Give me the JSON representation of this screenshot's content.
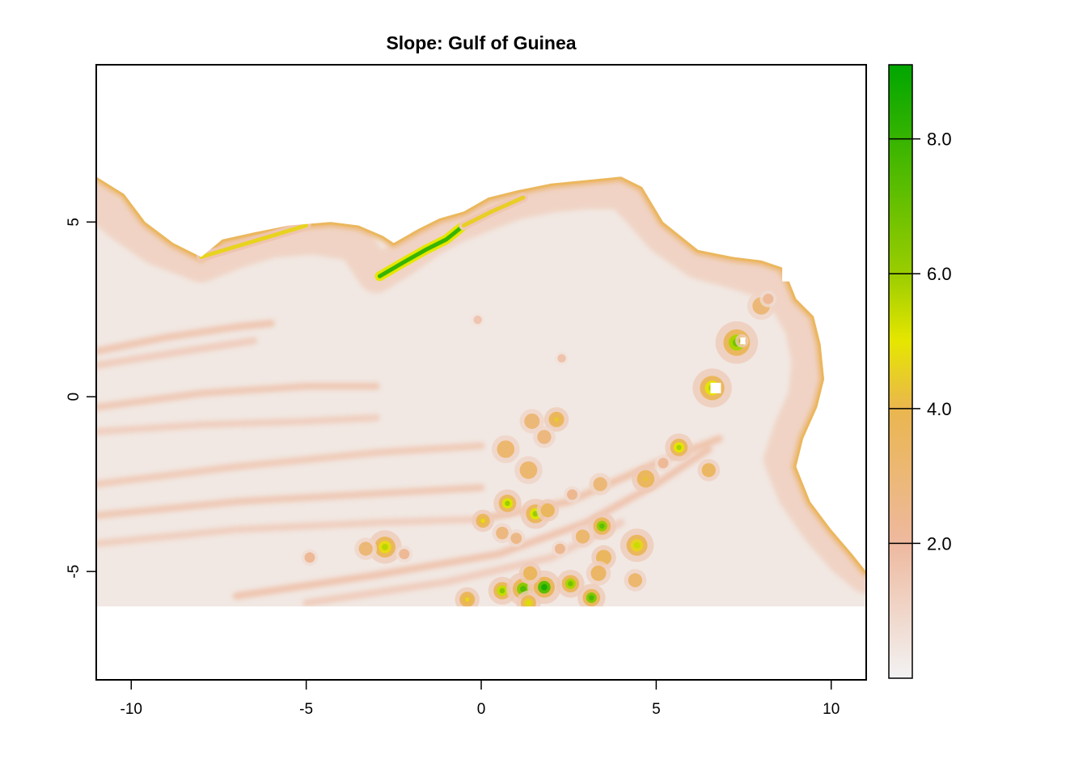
{
  "chart_data": {
    "type": "heatmap",
    "title": "Slope: Gulf of Guinea",
    "xlabel": "",
    "ylabel": "",
    "xlim": [
      -11,
      11
    ],
    "ylim": [
      -8.1,
      9.5
    ],
    "data_extent_ymin": -6,
    "x_ticks": [
      -10,
      -5,
      0,
      5,
      10
    ],
    "x_tick_labels": [
      "-10",
      "-5",
      "0",
      "5",
      "10"
    ],
    "y_ticks": [
      -5,
      0,
      5
    ],
    "y_tick_labels": [
      "-5",
      "0",
      "5"
    ],
    "legend": {
      "placement": "right",
      "range": [
        0,
        9.1
      ],
      "ticks": [
        2,
        4,
        6,
        8
      ],
      "tick_labels": [
        "2.0",
        "4.0",
        "6.0",
        "8.0"
      ],
      "color_stops": [
        {
          "value": 0,
          "color": "#F2F2F2"
        },
        {
          "value": 2,
          "color": "#EEB99F"
        },
        {
          "value": 4,
          "color": "#EAB64E"
        },
        {
          "value": 5,
          "color": "#E6E600"
        },
        {
          "value": 6,
          "color": "#9ACD00"
        },
        {
          "value": 9.1,
          "color": "#00A600"
        }
      ]
    },
    "land_color": "#FFFFFF",
    "coastline": [
      [
        -11,
        6.3
      ],
      [
        -10.2,
        5.8
      ],
      [
        -9.6,
        5.0
      ],
      [
        -8.8,
        4.4
      ],
      [
        -8.0,
        4.0
      ],
      [
        -7.4,
        4.5
      ],
      [
        -6.5,
        4.7
      ],
      [
        -5.5,
        4.9
      ],
      [
        -4.3,
        5.0
      ],
      [
        -3.5,
        4.9
      ],
      [
        -2.8,
        4.6
      ],
      [
        -2.5,
        4.4
      ],
      [
        -1.8,
        4.8
      ],
      [
        -1.2,
        5.1
      ],
      [
        -0.5,
        5.3
      ],
      [
        0.2,
        5.7
      ],
      [
        1.0,
        5.9
      ],
      [
        2.0,
        6.1
      ],
      [
        3.0,
        6.2
      ],
      [
        4.0,
        6.3
      ],
      [
        4.6,
        6.0
      ],
      [
        5.2,
        5.0
      ],
      [
        6.2,
        4.2
      ],
      [
        7.2,
        4.0
      ],
      [
        8.0,
        3.9
      ],
      [
        8.6,
        3.7
      ],
      [
        8.8,
        3.3
      ],
      [
        9.0,
        2.8
      ],
      [
        9.5,
        2.3
      ],
      [
        9.7,
        1.5
      ],
      [
        9.8,
        0.5
      ],
      [
        9.6,
        -0.3
      ],
      [
        9.2,
        -1.2
      ],
      [
        9.0,
        -2.0
      ],
      [
        9.4,
        -3.0
      ],
      [
        10.0,
        -3.8
      ],
      [
        10.6,
        -4.5
      ],
      [
        11,
        -5.0
      ]
    ],
    "shelf_break": [
      [
        -11,
        5.6
      ],
      [
        -10.3,
        5.0
      ],
      [
        -9.3,
        4.3
      ],
      [
        -8.0,
        3.8
      ],
      [
        -7.0,
        4.2
      ],
      [
        -6.0,
        4.5
      ],
      [
        -4.8,
        4.6
      ],
      [
        -3.6,
        4.4
      ],
      [
        -3.0,
        3.5
      ],
      [
        -2.2,
        4.0
      ],
      [
        -1.5,
        4.5
      ],
      [
        -0.8,
        4.9
      ],
      [
        0.2,
        5.3
      ],
      [
        1.0,
        5.6
      ],
      [
        2.0,
        5.8
      ],
      [
        3.0,
        5.9
      ],
      [
        4.0,
        5.9
      ],
      [
        4.5,
        5.4
      ],
      [
        5.2,
        4.6
      ],
      [
        6.2,
        3.9
      ],
      [
        7.3,
        3.6
      ],
      [
        8.2,
        3.3
      ],
      [
        8.8,
        2.7
      ],
      [
        9.2,
        2.0
      ],
      [
        9.4,
        1.0
      ],
      [
        9.3,
        0.0
      ],
      [
        8.9,
        -0.9
      ],
      [
        8.6,
        -1.8
      ],
      [
        9.0,
        -2.8
      ],
      [
        9.7,
        -3.8
      ],
      [
        10.4,
        -4.6
      ],
      [
        11,
        -5.1
      ]
    ],
    "steep_segments": [
      {
        "points": [
          [
            -2.9,
            3.45
          ],
          [
            -2.3,
            3.8
          ],
          [
            -1.6,
            4.2
          ],
          [
            -1.0,
            4.5
          ],
          [
            -0.5,
            4.9
          ]
        ],
        "value": 8.0
      },
      {
        "points": [
          [
            -8.0,
            4.0
          ],
          [
            -7.0,
            4.3
          ],
          [
            -6.0,
            4.6
          ],
          [
            -5.0,
            4.9
          ]
        ],
        "value": 4.6
      },
      {
        "points": [
          [
            -0.5,
            4.9
          ],
          [
            0.3,
            5.3
          ],
          [
            1.2,
            5.7
          ]
        ],
        "value": 4.5
      }
    ],
    "ridges": [
      {
        "points": [
          [
            -11,
            1.3
          ],
          [
            -9.0,
            1.7
          ],
          [
            -7.0,
            2.0
          ],
          [
            -6.0,
            2.1
          ]
        ],
        "value": 1.9
      },
      {
        "points": [
          [
            -11,
            0.9
          ],
          [
            -8.5,
            1.3
          ],
          [
            -6.5,
            1.6
          ]
        ],
        "value": 1.6
      },
      {
        "points": [
          [
            -11,
            -0.3
          ],
          [
            -8.0,
            0.1
          ],
          [
            -5.0,
            0.3
          ],
          [
            -3.0,
            0.3
          ]
        ],
        "value": 1.8
      },
      {
        "points": [
          [
            -11,
            -1.0
          ],
          [
            -8.0,
            -0.8
          ],
          [
            -5.0,
            -0.7
          ],
          [
            -3.0,
            -0.6
          ]
        ],
        "value": 1.5
      },
      {
        "points": [
          [
            -11,
            -2.5
          ],
          [
            -7.0,
            -2.0
          ],
          [
            -3.0,
            -1.6
          ],
          [
            0.0,
            -1.4
          ]
        ],
        "value": 1.7
      },
      {
        "points": [
          [
            -11,
            -3.4
          ],
          [
            -7.0,
            -3.0
          ],
          [
            -3.5,
            -2.8
          ],
          [
            0.0,
            -2.6
          ]
        ],
        "value": 1.8
      },
      {
        "points": [
          [
            -11,
            -4.2
          ],
          [
            -7.0,
            -3.8
          ],
          [
            -3.0,
            -3.6
          ],
          [
            0.0,
            -3.5
          ]
        ],
        "value": 1.5
      },
      {
        "points": [
          [
            -7.0,
            -5.7
          ],
          [
            -3.0,
            -5.1
          ],
          [
            0.5,
            -4.5
          ],
          [
            3.0,
            -3.6
          ],
          [
            5.0,
            -2.5
          ],
          [
            6.5,
            -1.5
          ]
        ],
        "value": 2.0
      },
      {
        "points": [
          [
            -5.0,
            -5.9
          ],
          [
            -1.0,
            -5.3
          ],
          [
            2.0,
            -4.6
          ],
          [
            4.0,
            -3.6
          ]
        ],
        "value": 1.6
      },
      {
        "points": [
          [
            0.0,
            -3.5
          ],
          [
            2.5,
            -3.0
          ],
          [
            5.0,
            -1.9
          ],
          [
            6.8,
            -1.2
          ]
        ],
        "value": 2.1
      }
    ],
    "seamounts": [
      {
        "x": 7.3,
        "y": 1.55,
        "r": 0.38,
        "peak": 6.8
      },
      {
        "x": 7.45,
        "y": 1.6,
        "r": 0.12,
        "peak": 8.5
      },
      {
        "x": 6.6,
        "y": 0.25,
        "r": 0.35,
        "peak": 5.8
      },
      {
        "x": 8.0,
        "y": 2.6,
        "r": 0.25,
        "peak": 3.0
      },
      {
        "x": 5.65,
        "y": -1.45,
        "r": 0.25,
        "peak": 5.8
      },
      {
        "x": 6.5,
        "y": -2.1,
        "r": 0.2,
        "peak": 3.5
      },
      {
        "x": 4.7,
        "y": -2.35,
        "r": 0.25,
        "peak": 4.2
      },
      {
        "x": 3.4,
        "y": -2.5,
        "r": 0.2,
        "peak": 3.0
      },
      {
        "x": 0.7,
        "y": -1.5,
        "r": 0.25,
        "peak": 3.2
      },
      {
        "x": 1.35,
        "y": -2.1,
        "r": 0.25,
        "peak": 3.2
      },
      {
        "x": 1.45,
        "y": -0.7,
        "r": 0.22,
        "peak": 3.0
      },
      {
        "x": 2.15,
        "y": -0.65,
        "r": 0.22,
        "peak": 4.4
      },
      {
        "x": 1.8,
        "y": -1.15,
        "r": 0.2,
        "peak": 2.8
      },
      {
        "x": 0.75,
        "y": -3.05,
        "r": 0.25,
        "peak": 6.0
      },
      {
        "x": 1.55,
        "y": -3.35,
        "r": 0.27,
        "peak": 6.0
      },
      {
        "x": 1.9,
        "y": -3.25,
        "r": 0.2,
        "peak": 4.0
      },
      {
        "x": 0.05,
        "y": -3.55,
        "r": 0.2,
        "peak": 4.8
      },
      {
        "x": 3.45,
        "y": -3.7,
        "r": 0.25,
        "peak": 7.2
      },
      {
        "x": 4.45,
        "y": -4.25,
        "r": 0.3,
        "peak": 5.4
      },
      {
        "x": 3.5,
        "y": -4.6,
        "r": 0.22,
        "peak": 4.0
      },
      {
        "x": 2.9,
        "y": -4.0,
        "r": 0.2,
        "peak": 3.2
      },
      {
        "x": 3.35,
        "y": -5.05,
        "r": 0.22,
        "peak": 3.4
      },
      {
        "x": 4.4,
        "y": -5.25,
        "r": 0.2,
        "peak": 3.2
      },
      {
        "x": -2.75,
        "y": -4.3,
        "r": 0.3,
        "peak": 5.6
      },
      {
        "x": -3.3,
        "y": -4.35,
        "r": 0.2,
        "peak": 3.0
      },
      {
        "x": 0.6,
        "y": -5.55,
        "r": 0.25,
        "peak": 6.4
      },
      {
        "x": 1.2,
        "y": -5.5,
        "r": 0.3,
        "peak": 7.4
      },
      {
        "x": 1.8,
        "y": -5.45,
        "r": 0.3,
        "peak": 8.6
      },
      {
        "x": 2.55,
        "y": -5.35,
        "r": 0.25,
        "peak": 6.8
      },
      {
        "x": 3.15,
        "y": -5.75,
        "r": 0.25,
        "peak": 7.6
      },
      {
        "x": 1.4,
        "y": -5.05,
        "r": 0.2,
        "peak": 4.0
      },
      {
        "x": -0.4,
        "y": -5.8,
        "r": 0.22,
        "peak": 4.6
      },
      {
        "x": 1.35,
        "y": -5.9,
        "r": 0.22,
        "peak": 5.2
      },
      {
        "x": 0.6,
        "y": -3.9,
        "r": 0.18,
        "peak": 2.8
      },
      {
        "x": 1.0,
        "y": -4.05,
        "r": 0.16,
        "peak": 2.6
      },
      {
        "x": 2.25,
        "y": -4.35,
        "r": 0.15,
        "peak": 2.4
      },
      {
        "x": -2.2,
        "y": -4.5,
        "r": 0.15,
        "peak": 2.2
      },
      {
        "x": -4.9,
        "y": -4.6,
        "r": 0.15,
        "peak": 2.2
      },
      {
        "x": 8.2,
        "y": 2.8,
        "r": 0.15,
        "peak": 2.2
      },
      {
        "x": 2.6,
        "y": -2.8,
        "r": 0.15,
        "peak": 2.4
      },
      {
        "x": 5.2,
        "y": -1.9,
        "r": 0.15,
        "peak": 2.2
      },
      {
        "x": -0.1,
        "y": 2.2,
        "r": 0.12,
        "peak": 1.6
      },
      {
        "x": 2.3,
        "y": 1.1,
        "r": 0.12,
        "peak": 1.7
      }
    ],
    "nodata_patches": [
      {
        "x": 8.6,
        "y": 3.3,
        "w": 0.45,
        "h": 0.4
      },
      {
        "x": 6.55,
        "y": 0.1,
        "w": 0.3,
        "h": 0.3
      },
      {
        "x": 7.4,
        "y": 1.5,
        "w": 0.15,
        "h": 0.2
      }
    ]
  }
}
